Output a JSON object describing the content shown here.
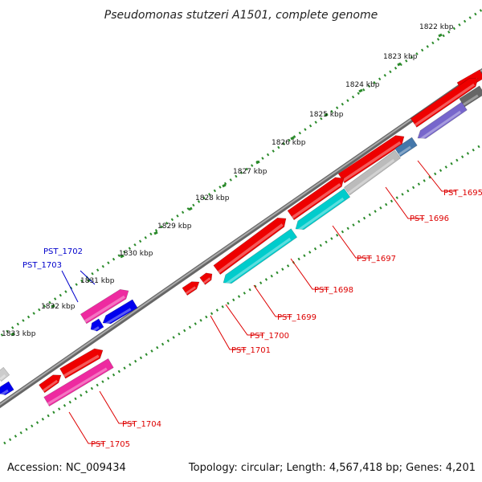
{
  "title": "Pseudomonas stutzeri A1501, complete genome",
  "footer": {
    "accession": "Accession: NC_009434",
    "summary": "Topology: circular; Length: 4,567,418 bp; Genes: 4,201"
  },
  "kbp_ticks": [
    {
      "label": "1822 kbp"
    },
    {
      "label": "1823 kbp"
    },
    {
      "label": "1824 kbp"
    },
    {
      "label": "1825 kbp"
    },
    {
      "label": "1826 kbp"
    },
    {
      "label": "1827 kbp"
    },
    {
      "label": "1828 kbp"
    },
    {
      "label": "1829 kbp"
    },
    {
      "label": "1830 kbp"
    },
    {
      "label": "1831 kbp"
    },
    {
      "label": "1832 kbp"
    },
    {
      "label": "1833 kbp"
    }
  ],
  "gene_labels": [
    {
      "text": "PST_1695",
      "color": "#dd0000"
    },
    {
      "text": "PST_1696",
      "color": "#dd0000"
    },
    {
      "text": "PST_1697",
      "color": "#dd0000"
    },
    {
      "text": "PST_1698",
      "color": "#dd0000"
    },
    {
      "text": "PST_1699",
      "color": "#dd0000"
    },
    {
      "text": "PST_1700",
      "color": "#dd0000"
    },
    {
      "text": "PST_1701",
      "color": "#dd0000"
    },
    {
      "text": "PST_1702",
      "color": "#0000cc"
    },
    {
      "text": "PST_1703",
      "color": "#0000cc"
    },
    {
      "text": "PST_1704",
      "color": "#dd0000"
    },
    {
      "text": "PST_1705",
      "color": "#dd0000"
    }
  ],
  "colors": {
    "backbone": "#888888",
    "tick_dots": "#2a8a2a",
    "cds_forward": "#ee0000",
    "cds_reverse_cyan": "#00cccc",
    "cds_grey": "#bbbbbb",
    "cds_pink": "#ee2aa0",
    "cds_blue": "#0000ee",
    "cds_purple": "#7766cc",
    "cds_steel": "#4477aa",
    "cds_darkgrey": "#666666"
  }
}
